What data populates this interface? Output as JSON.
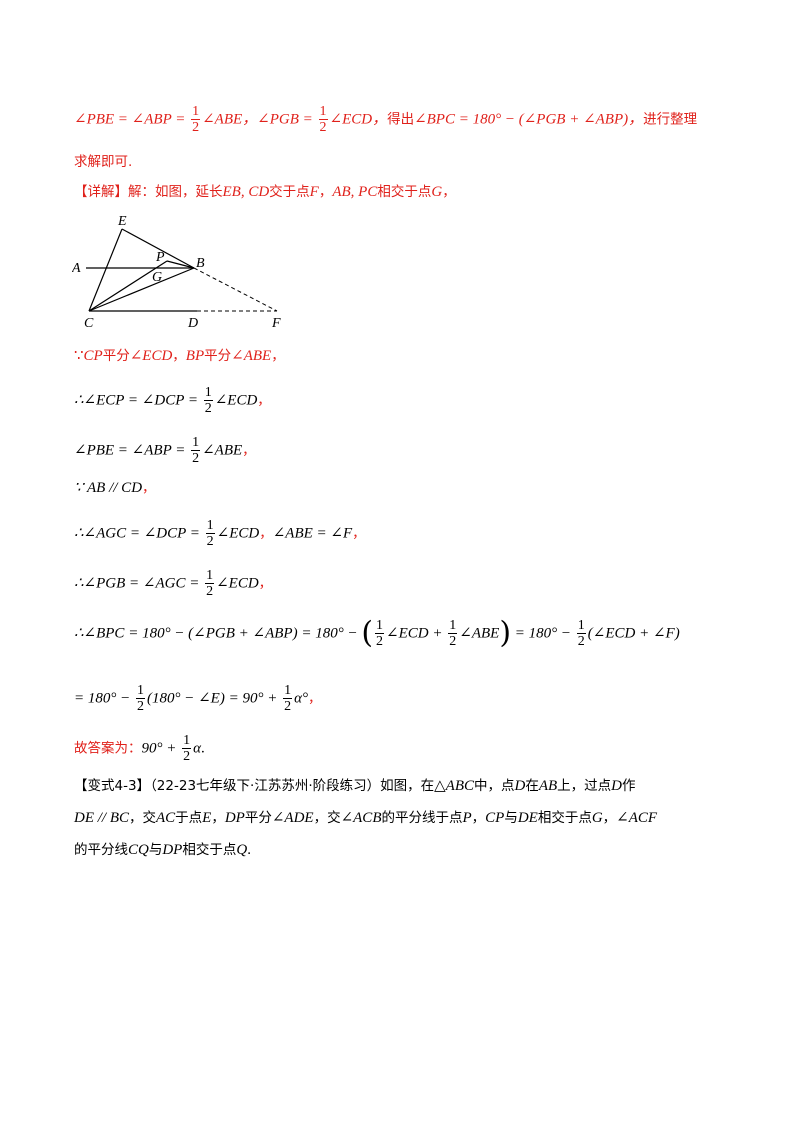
{
  "line1": {
    "a": "∠PBE = ∠ABP = ",
    "b": "∠ABE，∠PGB = ",
    "c": "∠ECD，",
    "d": "得出",
    "e": "∠BPC = 180° − (∠PGB + ∠ABP)，",
    "f": "进行整理"
  },
  "line2": "求解即可.",
  "detail": {
    "label": "【详解】",
    "text": "解：如图，延长",
    "m1": "EB, CD",
    "t2": "交于点",
    "m2": "F",
    "t3": "，",
    "m3": "AB, PC",
    "t4": "相交于点",
    "m4": "G",
    "t5": "，"
  },
  "figure": {
    "labels": {
      "E": "E",
      "A": "A",
      "P": "P",
      "B": "B",
      "G": "G",
      "C": "C",
      "D": "D",
      "F": "F"
    }
  },
  "s1": {
    "because": "∵",
    "m1": "CP",
    "t1": "平分",
    "m2": "∠ECD",
    "t2": "，",
    "m3": "BP",
    "t3": "平分",
    "m4": "∠ABE",
    "t4": "，"
  },
  "s2": {
    "a": "∴∠ECP = ∠DCP = ",
    "b": "∠ECD",
    "end": "，"
  },
  "s3": {
    "a": "∠PBE = ∠ABP = ",
    "b": "∠ABE",
    "end": "，"
  },
  "s4": {
    "a": "∵ AB // CD",
    "end": "，"
  },
  "s5": {
    "a": "∴∠AGC = ∠DCP = ",
    "b": "∠ECD",
    "c": "，",
    "d": "∠ABE = ∠F",
    "end": "，"
  },
  "s6": {
    "a": "∴∠PGB = ∠AGC = ",
    "b": "∠ECD",
    "end": "，"
  },
  "s7": {
    "a": "∴∠BPC = 180° − (∠PGB + ∠ABP) = 180° − ",
    "b": "∠ECD + ",
    "c": "∠ABE",
    "d": " = 180° − ",
    "e": "(∠ECD + ∠F)"
  },
  "s8": {
    "a": "= 180° − ",
    "b": "(180° − ∠E) = 90° + ",
    "c": "α°",
    "end": "，"
  },
  "answer": {
    "text": "故答案为：",
    "a": "90° + ",
    "b": "α",
    "end": "."
  },
  "frac": {
    "num": "1",
    "den": "2"
  },
  "paren": {
    "open": "(",
    "close": ")"
  },
  "variant": {
    "label": "【变式4-3】",
    "source": "（22-23七年级下·江苏苏州·阶段练习）如图，在",
    "tri": "△ABC",
    "t1": "中，点",
    "mD": "D",
    "t2": "在",
    "mAB": "AB",
    "t3": "上，过点",
    "mD2": "D",
    "t4": "作",
    "l2a": "DE // BC",
    "l2b": "，交",
    "l2c": "AC",
    "l2d": "于点",
    "l2e": "E",
    "l2f": "，",
    "l2g": "DP",
    "l2h": "平分",
    "l2i": "∠ADE",
    "l2j": "，交",
    "l2k": "∠ACB",
    "l2l": "的平分线于点",
    "l2m": "P",
    "l2n": "，",
    "l2o": "CP",
    "l2p": "与",
    "l2q": "DE",
    "l2r": "相交于点",
    "l2s": "G",
    "l2t": "，",
    "l2u": "∠ACF",
    "l3a": "的平分线",
    "l3b": "CQ",
    "l3c": "与",
    "l3d": "DP",
    "l3e": "相交于点",
    "l3f": "Q",
    "l3g": "."
  }
}
